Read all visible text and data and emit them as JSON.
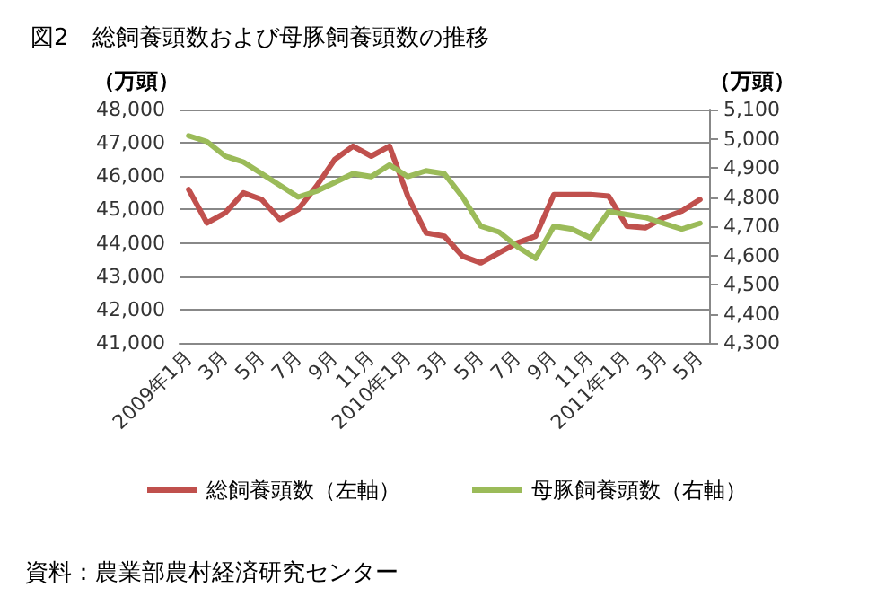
{
  "chart_data": {
    "type": "line",
    "title": "図2　総飼養頭数および母豚飼養頭数の推移",
    "ylabel": "（万頭）",
    "y2label": "（万頭）",
    "categories": [
      "2009年1月",
      null,
      "3月",
      null,
      "5月",
      null,
      "7月",
      null,
      "9月",
      null,
      "11月",
      null,
      "2010年1月",
      null,
      "3月",
      null,
      "5月",
      null,
      "7月",
      null,
      "9月",
      null,
      "11月",
      null,
      "2011年1月",
      null,
      "3月",
      null,
      "5月"
    ],
    "series": [
      {
        "name": "総飼養頭数（左軸）",
        "color": "#c0504d",
        "values": [
          45600,
          44600,
          44900,
          45500,
          45300,
          44700,
          45000,
          45700,
          46500,
          46900,
          46600,
          46900,
          45400,
          44300,
          44200,
          43600,
          43400,
          43700,
          44000,
          44200,
          45450,
          45450,
          45450,
          45400,
          44500,
          44450,
          44750,
          44950,
          45300
        ]
      },
      {
        "name": "母豚飼養頭数（右軸）",
        "color": "#9bbb59",
        "axis": "y2",
        "values": [
          5010,
          4990,
          4940,
          4920,
          4880,
          4840,
          4800,
          4820,
          4850,
          4880,
          4870,
          4910,
          4870,
          4890,
          4880,
          4800,
          4700,
          4680,
          4630,
          4590,
          4700,
          4690,
          4660,
          4750,
          4740,
          4730,
          4710,
          4690,
          4710
        ]
      }
    ],
    "ylim": [
      41000,
      48000
    ],
    "yticks": [
      {
        "value": 41000,
        "label": "41,000"
      },
      {
        "value": 42000,
        "label": "42,000"
      },
      {
        "value": 43000,
        "label": "43,000"
      },
      {
        "value": 44000,
        "label": "44,000"
      },
      {
        "value": 45000,
        "label": "45,000"
      },
      {
        "value": 46000,
        "label": "46,000"
      },
      {
        "value": 47000,
        "label": "47,000"
      },
      {
        "value": 48000,
        "label": "48,000"
      }
    ],
    "y2lim": [
      4300,
      5100
    ],
    "y2ticks": [
      {
        "value": 4300,
        "label": "4,300"
      },
      {
        "value": 4400,
        "label": "4,400"
      },
      {
        "value": 4500,
        "label": "4,500"
      },
      {
        "value": 4600,
        "label": "4,600"
      },
      {
        "value": 4700,
        "label": "4,700"
      },
      {
        "value": 4800,
        "label": "4,800"
      },
      {
        "value": 4900,
        "label": "4,900"
      },
      {
        "value": 5000,
        "label": "5,000"
      },
      {
        "value": 5100,
        "label": "5,100"
      }
    ],
    "grid": "y",
    "legend": "bottom",
    "marker": "none",
    "line_style": "solid",
    "annotations": [
      "資料：農業部農村経済研究センター"
    ]
  }
}
